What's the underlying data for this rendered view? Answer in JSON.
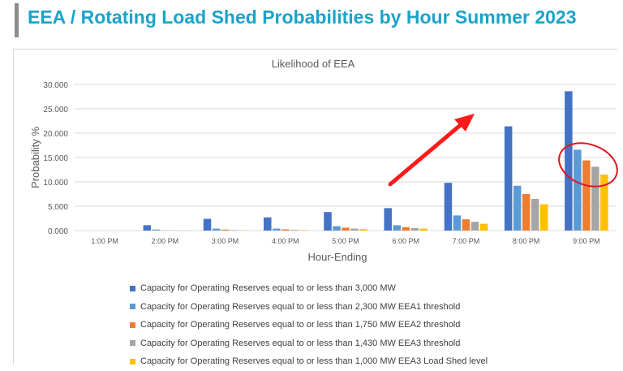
{
  "slide": {
    "title": "EEA / Rotating Load Shed Probabilities by Hour Summer 2023"
  },
  "chart_data": {
    "type": "bar",
    "title": "Likelihood of EEA",
    "xlabel": "Hour-Ending",
    "ylabel": "Probability %",
    "ylim": [
      0,
      30
    ],
    "yticks": [
      "0.000",
      "5.000",
      "10.000",
      "15.000",
      "20.000",
      "25.000",
      "30.000"
    ],
    "grid": true,
    "legend_position": "bottom",
    "categories": [
      "1:00 PM",
      "2:00 PM",
      "3:00 PM",
      "4:00 PM",
      "5:00 PM",
      "6:00 PM",
      "7:00 PM",
      "8:00 PM",
      "9:00 PM"
    ],
    "series": [
      {
        "name": "Capacity for Operating Reserves equal to or less than 3,000 MW",
        "color": "#4472c4",
        "values": [
          0.0,
          1.1,
          2.4,
          2.7,
          3.8,
          4.6,
          9.8,
          21.4,
          28.6
        ]
      },
      {
        "name": "Capacity for Operating Reserves equal to or less than 2,300 MW EEA1 threshold",
        "color": "#5b9bd5",
        "values": [
          0.0,
          0.2,
          0.4,
          0.4,
          0.9,
          1.1,
          3.1,
          9.2,
          16.6
        ]
      },
      {
        "name": "Capacity for Operating Reserves equal to or less than 1,750 MW EEA2 threshold",
        "color": "#ed7d31",
        "values": [
          0.0,
          0.05,
          0.2,
          0.25,
          0.6,
          0.7,
          2.3,
          7.5,
          14.4
        ]
      },
      {
        "name": "Capacity for Operating Reserves equal to or less than 1,430 MW EEA3 threshold",
        "color": "#a5a5a5",
        "values": [
          0.0,
          0.03,
          0.1,
          0.15,
          0.4,
          0.5,
          1.8,
          6.5,
          13.1
        ]
      },
      {
        "name": "Capacity for Operating Reserves equal to or less than 1,000 MW EEA3 Load Shed level",
        "color": "#ffc000",
        "values": [
          0.0,
          0.02,
          0.05,
          0.1,
          0.3,
          0.4,
          1.4,
          5.4,
          11.5
        ]
      }
    ]
  }
}
